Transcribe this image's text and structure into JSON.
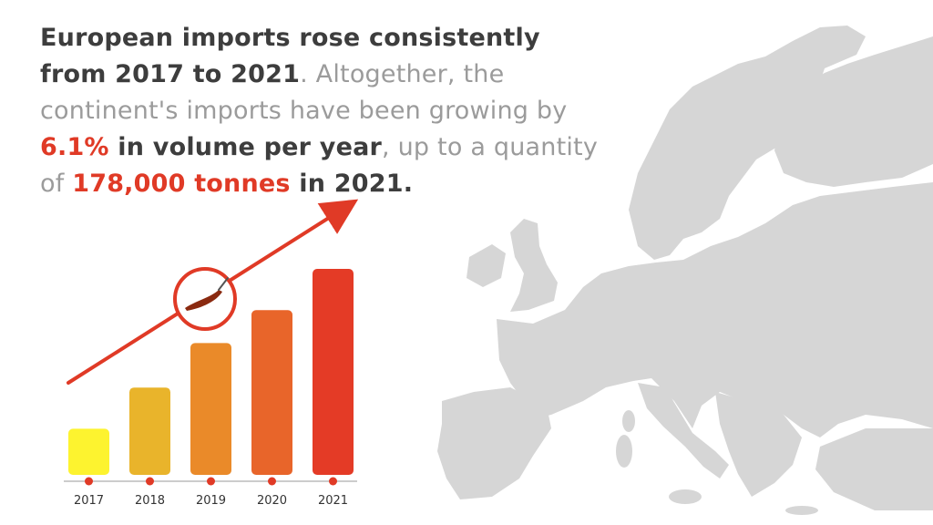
{
  "headline": {
    "part1": "European imports rose consistently from 2017 to 2021",
    "part2": ". Altogether, the continent's imports have been growing by ",
    "part3": "6.1%",
    "part4": " in volume per year",
    "part5": ", up to a quantity of ",
    "part6": "178,000 tonnes",
    "part7": " in 2021",
    "part8": "."
  },
  "colors": {
    "map": "#d6d6d6",
    "arrow": "#e03a26",
    "marker": "#e03a26",
    "bars": [
      "#fdf32f",
      "#e9b42b",
      "#ea8a29",
      "#e8652a",
      "#e43b26"
    ]
  },
  "icons": {
    "highlight": "chili-pepper-icon"
  },
  "chart_data": {
    "type": "bar",
    "categories": [
      "2017",
      "2018",
      "2019",
      "2020",
      "2021"
    ],
    "values": [
      0.28,
      0.53,
      0.8,
      1.0,
      1.25
    ],
    "ylim": [
      0,
      1.3
    ],
    "grid": false,
    "title": "",
    "xlabel": "",
    "ylabel": ""
  }
}
